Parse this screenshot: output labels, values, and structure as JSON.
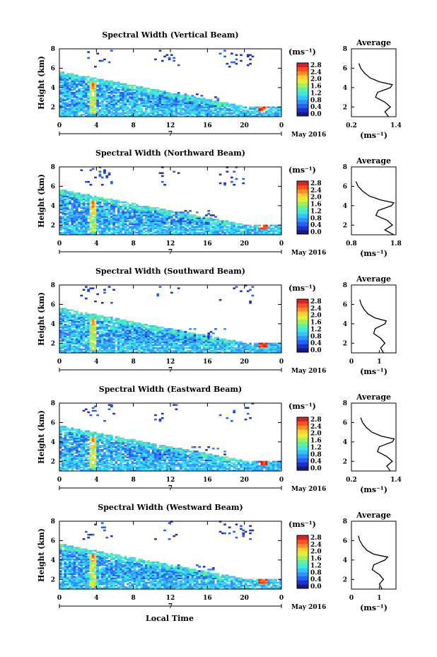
{
  "figure": {
    "xlabel": "Local Time",
    "date_label": "May 2016",
    "day_label": "7",
    "unit_label": "(ms⁻¹)",
    "ylabel": "Height (km)",
    "avg_title": "Average"
  },
  "colorbar": {
    "ticks": [
      "2.8",
      "2.4",
      "2.0",
      "1.6",
      "1.2",
      "0.8",
      "0.4",
      "0.0"
    ],
    "colors": [
      "#1a1a7a",
      "#2030c8",
      "#2860f0",
      "#3090ff",
      "#38c0ff",
      "#40e8e0",
      "#60f0a0",
      "#a0f060",
      "#e0f040",
      "#ffd030",
      "#ff9028",
      "#ff5020",
      "#e02020"
    ]
  },
  "chart_data": [
    {
      "type": "heatmap",
      "title": "Spectral Width (Vertical Beam)",
      "xlabel": "Local Time",
      "ylabel": "Height (km)",
      "x_ticks": [
        "0",
        "4",
        "8",
        "12",
        "16",
        "20",
        "0"
      ],
      "y_ticks": [
        "2",
        "4",
        "6",
        "8"
      ],
      "xlim": [
        0,
        24
      ],
      "ylim": [
        1,
        8
      ],
      "colorbar_label": "(ms⁻¹)",
      "colorbar_ticks": [
        "2.8",
        "2.4",
        "2.0",
        "1.6",
        "1.2",
        "0.8",
        "0.4",
        "0.0"
      ],
      "profile": {
        "title": "Average",
        "xlabel": "(ms⁻¹)",
        "x_ticks": [
          "0.2",
          "1.4"
        ],
        "xlim": [
          0.2,
          1.4
        ],
        "y_ticks": [
          "2",
          "4",
          "6",
          "8"
        ],
        "ylim": [
          1,
          8
        ],
        "height": [
          1.0,
          1.5,
          2.0,
          2.5,
          3.0,
          3.5,
          4.0,
          4.3,
          4.6,
          5.0,
          5.5,
          6.0,
          6.5
        ],
        "value": [
          1.2,
          1.1,
          1.25,
          1.1,
          0.85,
          0.9,
          1.25,
          1.3,
          0.95,
          0.7,
          0.55,
          0.45,
          0.4
        ]
      }
    },
    {
      "type": "heatmap",
      "title": "Spectral Width (Northward Beam)",
      "xlabel": "Local Time",
      "ylabel": "Height (km)",
      "x_ticks": [
        "0",
        "4",
        "8",
        "12",
        "16",
        "20",
        "0"
      ],
      "y_ticks": [
        "2",
        "4",
        "6",
        "8"
      ],
      "xlim": [
        0,
        24
      ],
      "ylim": [
        1,
        8
      ],
      "colorbar_label": "(ms⁻¹)",
      "colorbar_ticks": [
        "2.8",
        "2.4",
        "2.0",
        "1.6",
        "1.2",
        "0.8",
        "0.4",
        "0.0"
      ],
      "profile": {
        "title": "Average",
        "xlabel": "(ms⁻¹)",
        "x_ticks": [
          "0.8",
          "1.8"
        ],
        "xlim": [
          0.8,
          1.8
        ],
        "y_ticks": [
          "2",
          "4",
          "6",
          "8"
        ],
        "ylim": [
          1,
          8
        ],
        "height": [
          1.0,
          1.5,
          2.0,
          2.5,
          3.0,
          3.5,
          4.0,
          4.3,
          4.6,
          5.0,
          5.5,
          6.0,
          6.5
        ],
        "value": [
          1.75,
          1.55,
          1.72,
          1.6,
          1.35,
          1.4,
          1.7,
          1.75,
          1.45,
          1.2,
          1.05,
          0.95,
          0.9
        ]
      }
    },
    {
      "type": "heatmap",
      "title": "Spectral Width (Southward Beam)",
      "xlabel": "Local Time",
      "ylabel": "Height (km)",
      "x_ticks": [
        "0",
        "4",
        "8",
        "12",
        "16",
        "20",
        "0"
      ],
      "y_ticks": [
        "2",
        "4",
        "6",
        "8"
      ],
      "xlim": [
        0,
        24
      ],
      "ylim": [
        1,
        8
      ],
      "colorbar_label": "(ms⁻¹)",
      "colorbar_ticks": [
        "2.8",
        "2.4",
        "2.0",
        "1.6",
        "1.2",
        "0.8",
        "0.4",
        "0.0"
      ],
      "profile": {
        "title": "Average",
        "xlabel": "(ms⁻¹)",
        "x_ticks": [
          "0",
          "1"
        ],
        "xlim": [
          0,
          1.6
        ],
        "y_ticks": [
          "2",
          "4",
          "6",
          "8"
        ],
        "ylim": [
          1,
          8
        ],
        "height": [
          1.0,
          1.5,
          2.0,
          2.5,
          3.0,
          3.5,
          4.0,
          4.3,
          4.6,
          5.0,
          5.5,
          6.0,
          6.5
        ],
        "value": [
          1.15,
          1.05,
          1.2,
          1.05,
          0.8,
          0.85,
          1.2,
          1.25,
          0.85,
          0.6,
          0.45,
          0.35,
          0.3
        ]
      }
    },
    {
      "type": "heatmap",
      "title": "Spectral Width (Eastward Beam)",
      "xlabel": "Local Time",
      "ylabel": "Height (km)",
      "x_ticks": [
        "0",
        "4",
        "8",
        "12",
        "16",
        "20",
        "0"
      ],
      "y_ticks": [
        "2",
        "4",
        "6",
        "8"
      ],
      "xlim": [
        0,
        24
      ],
      "ylim": [
        1,
        8
      ],
      "colorbar_label": "(ms⁻¹)",
      "colorbar_ticks": [
        "2.8",
        "2.4",
        "2.0",
        "1.6",
        "1.2",
        "0.8",
        "0.4",
        "0.0"
      ],
      "profile": {
        "title": "Average",
        "xlabel": "(ms⁻¹)",
        "x_ticks": [
          "0.2",
          "1.4"
        ],
        "xlim": [
          0.2,
          1.4
        ],
        "y_ticks": [
          "2",
          "4",
          "6",
          "8"
        ],
        "ylim": [
          1,
          8
        ],
        "height": [
          1.0,
          1.5,
          2.0,
          2.5,
          3.0,
          3.5,
          4.0,
          4.3,
          4.6,
          5.0,
          5.5,
          6.0,
          6.5
        ],
        "value": [
          1.25,
          1.15,
          1.3,
          1.15,
          0.9,
          0.95,
          1.3,
          1.35,
          1.0,
          0.75,
          0.6,
          0.5,
          0.45
        ]
      }
    },
    {
      "type": "heatmap",
      "title": "Spectral Width (Westward Beam)",
      "xlabel": "Local Time",
      "ylabel": "Height (km)",
      "x_ticks": [
        "0",
        "4",
        "8",
        "12",
        "16",
        "20",
        "0"
      ],
      "y_ticks": [
        "2",
        "4",
        "6",
        "8"
      ],
      "xlim": [
        0,
        24
      ],
      "ylim": [
        1,
        8
      ],
      "colorbar_label": "(ms⁻¹)",
      "colorbar_ticks": [
        "2.8",
        "2.4",
        "2.0",
        "1.6",
        "1.2",
        "0.8",
        "0.4",
        "0.0"
      ],
      "profile": {
        "title": "Average",
        "xlabel": "(ms⁻¹)",
        "x_ticks": [
          "0",
          "1"
        ],
        "xlim": [
          0,
          1.6
        ],
        "y_ticks": [
          "2",
          "4",
          "6",
          "8"
        ],
        "ylim": [
          1,
          8
        ],
        "height": [
          1.0,
          1.5,
          2.0,
          2.5,
          3.0,
          3.5,
          4.0,
          4.3,
          4.6,
          5.0,
          5.5,
          6.0,
          6.5
        ],
        "value": [
          1.1,
          1.0,
          1.15,
          1.0,
          0.75,
          0.8,
          1.2,
          1.3,
          0.8,
          0.55,
          0.4,
          0.3,
          0.25
        ]
      }
    }
  ]
}
